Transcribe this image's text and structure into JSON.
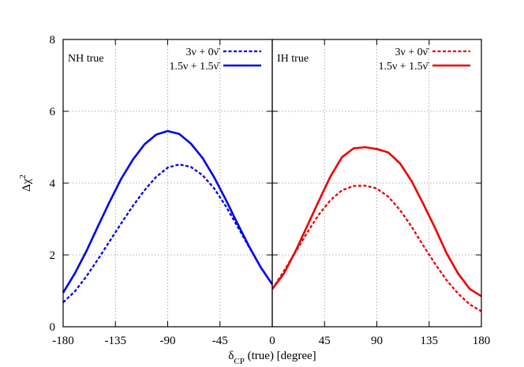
{
  "chart_data": [
    {
      "type": "line",
      "panel_label": "NH true",
      "xlim": [
        -180,
        0
      ],
      "ylim": [
        0,
        8
      ],
      "xticks": [
        "-180",
        "-135",
        "-90",
        "-45",
        "0"
      ],
      "yticks": [
        "0",
        "2",
        "4",
        "6",
        "8"
      ],
      "grid": true,
      "legend_placement": "top-right",
      "series": [
        {
          "name": "3ν + 0ν̄",
          "color": "#0000ee",
          "dashed": true,
          "x": [
            -180,
            -170,
            -160,
            -150,
            -140,
            -130,
            -120,
            -110,
            -100,
            -90,
            -80,
            -70,
            -60,
            -50,
            -40,
            -30,
            -20,
            -10,
            0
          ],
          "y": [
            0.68,
            0.98,
            1.4,
            1.88,
            2.38,
            2.88,
            3.36,
            3.8,
            4.17,
            4.43,
            4.52,
            4.45,
            4.22,
            3.85,
            3.36,
            2.8,
            2.22,
            1.66,
            1.18
          ]
        },
        {
          "name": "1.5ν + 1.5ν̄",
          "color": "#0000ee",
          "dashed": false,
          "x": [
            -180,
            -170,
            -160,
            -150,
            -140,
            -130,
            -120,
            -110,
            -100,
            -90,
            -80,
            -70,
            -60,
            -50,
            -40,
            -30,
            -20,
            -10,
            0
          ],
          "y": [
            0.95,
            1.48,
            2.1,
            2.8,
            3.48,
            4.12,
            4.65,
            5.08,
            5.35,
            5.45,
            5.37,
            5.1,
            4.7,
            4.16,
            3.54,
            2.88,
            2.24,
            1.66,
            1.18
          ]
        }
      ]
    },
    {
      "type": "line",
      "panel_label": "IH true",
      "xlim": [
        0,
        180
      ],
      "ylim": [
        0,
        8
      ],
      "xticks": [
        "0",
        "45",
        "90",
        "135",
        "180"
      ],
      "grid": true,
      "legend_placement": "top-right",
      "series": [
        {
          "name": "3ν + 0ν̄",
          "color": "#ee0000",
          "dashed": true,
          "x": [
            0,
            10,
            20,
            30,
            40,
            50,
            60,
            70,
            80,
            90,
            100,
            110,
            120,
            130,
            140,
            150,
            160,
            170,
            180
          ],
          "y": [
            1.05,
            1.55,
            2.08,
            2.62,
            3.12,
            3.52,
            3.8,
            3.92,
            3.93,
            3.85,
            3.62,
            3.25,
            2.78,
            2.26,
            1.76,
            1.3,
            0.92,
            0.62,
            0.43
          ]
        },
        {
          "name": "1.5ν + 1.5ν̄",
          "color": "#ee0000",
          "dashed": false,
          "x": [
            0,
            10,
            20,
            30,
            40,
            50,
            60,
            70,
            80,
            90,
            100,
            110,
            120,
            130,
            140,
            150,
            160,
            170,
            180
          ],
          "y": [
            1.05,
            1.48,
            2.1,
            2.8,
            3.5,
            4.18,
            4.72,
            4.97,
            5.0,
            4.95,
            4.85,
            4.55,
            4.05,
            3.42,
            2.76,
            2.05,
            1.48,
            1.05,
            0.85
          ]
        }
      ]
    }
  ],
  "ylabel": {
    "base": "Δχ",
    "sup": "2"
  },
  "xlabel": {
    "base": "δ",
    "sub": "CP",
    "rest": " (true) [degree]"
  }
}
